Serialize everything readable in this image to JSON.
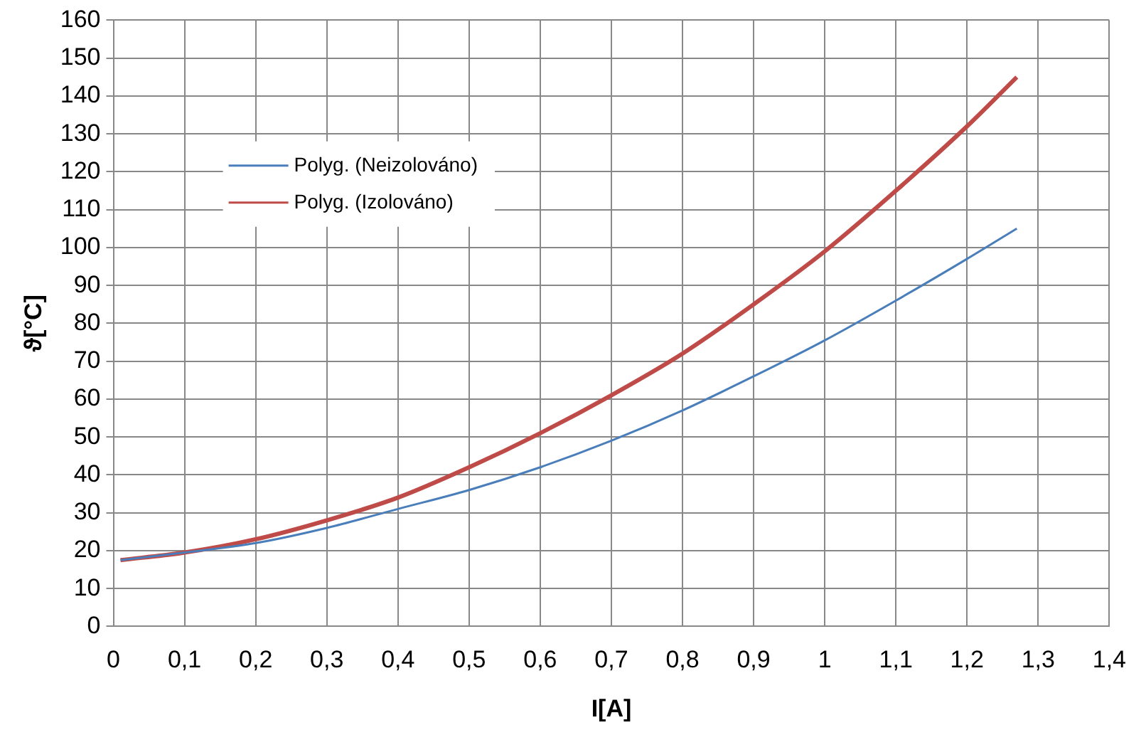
{
  "chart_data": {
    "type": "line",
    "xlabel": "I[A]",
    "ylabel": "ϑ[°C]",
    "xlim": [
      0,
      1.4
    ],
    "xticks": [
      0,
      {
        "value": 0.1,
        "label": "0,1"
      },
      {
        "value": 0.2,
        "label": "0,2"
      },
      {
        "value": 0.3,
        "label": "0,3"
      },
      {
        "value": 0.4,
        "label": "0,4"
      },
      {
        "value": 0.5,
        "label": "0,5"
      },
      {
        "value": 0.6,
        "label": "0,6"
      },
      {
        "value": 0.7,
        "label": "0,7"
      },
      {
        "value": 0.8,
        "label": "0,8"
      },
      {
        "value": 0.9,
        "label": "0,9"
      },
      1,
      {
        "value": 1.1,
        "label": "1,1"
      },
      {
        "value": 1.2,
        "label": "1,2"
      },
      {
        "value": 1.3,
        "label": "1,3"
      },
      {
        "value": 1.4,
        "label": "1,4"
      }
    ],
    "ylim": [
      0,
      160
    ],
    "yticks": [
      0,
      10,
      20,
      30,
      40,
      50,
      60,
      70,
      80,
      90,
      100,
      110,
      120,
      130,
      140,
      150,
      160
    ],
    "grid": true,
    "legend": "top left",
    "marker": "none",
    "line_style": "solid",
    "x": [
      0.01,
      0.1,
      0.2,
      0.3,
      0.4,
      0.5,
      0.6,
      0.7,
      0.8,
      0.9,
      1.0,
      1.1,
      1.2,
      1.27
    ],
    "series": [
      {
        "name": "Polyg. (Neizolováno)",
        "color": "#4a7ebb",
        "values": [
          17.5,
          19.5,
          22,
          26,
          31,
          36,
          42,
          49,
          57,
          66,
          75.5,
          86,
          97,
          105
        ]
      },
      {
        "name": "Polyg. (Izolováno)",
        "color": "#be4b48",
        "values": [
          17.5,
          19.5,
          23,
          28,
          34,
          42,
          51,
          61,
          72,
          85,
          99,
          115,
          132,
          145
        ]
      }
    ]
  }
}
